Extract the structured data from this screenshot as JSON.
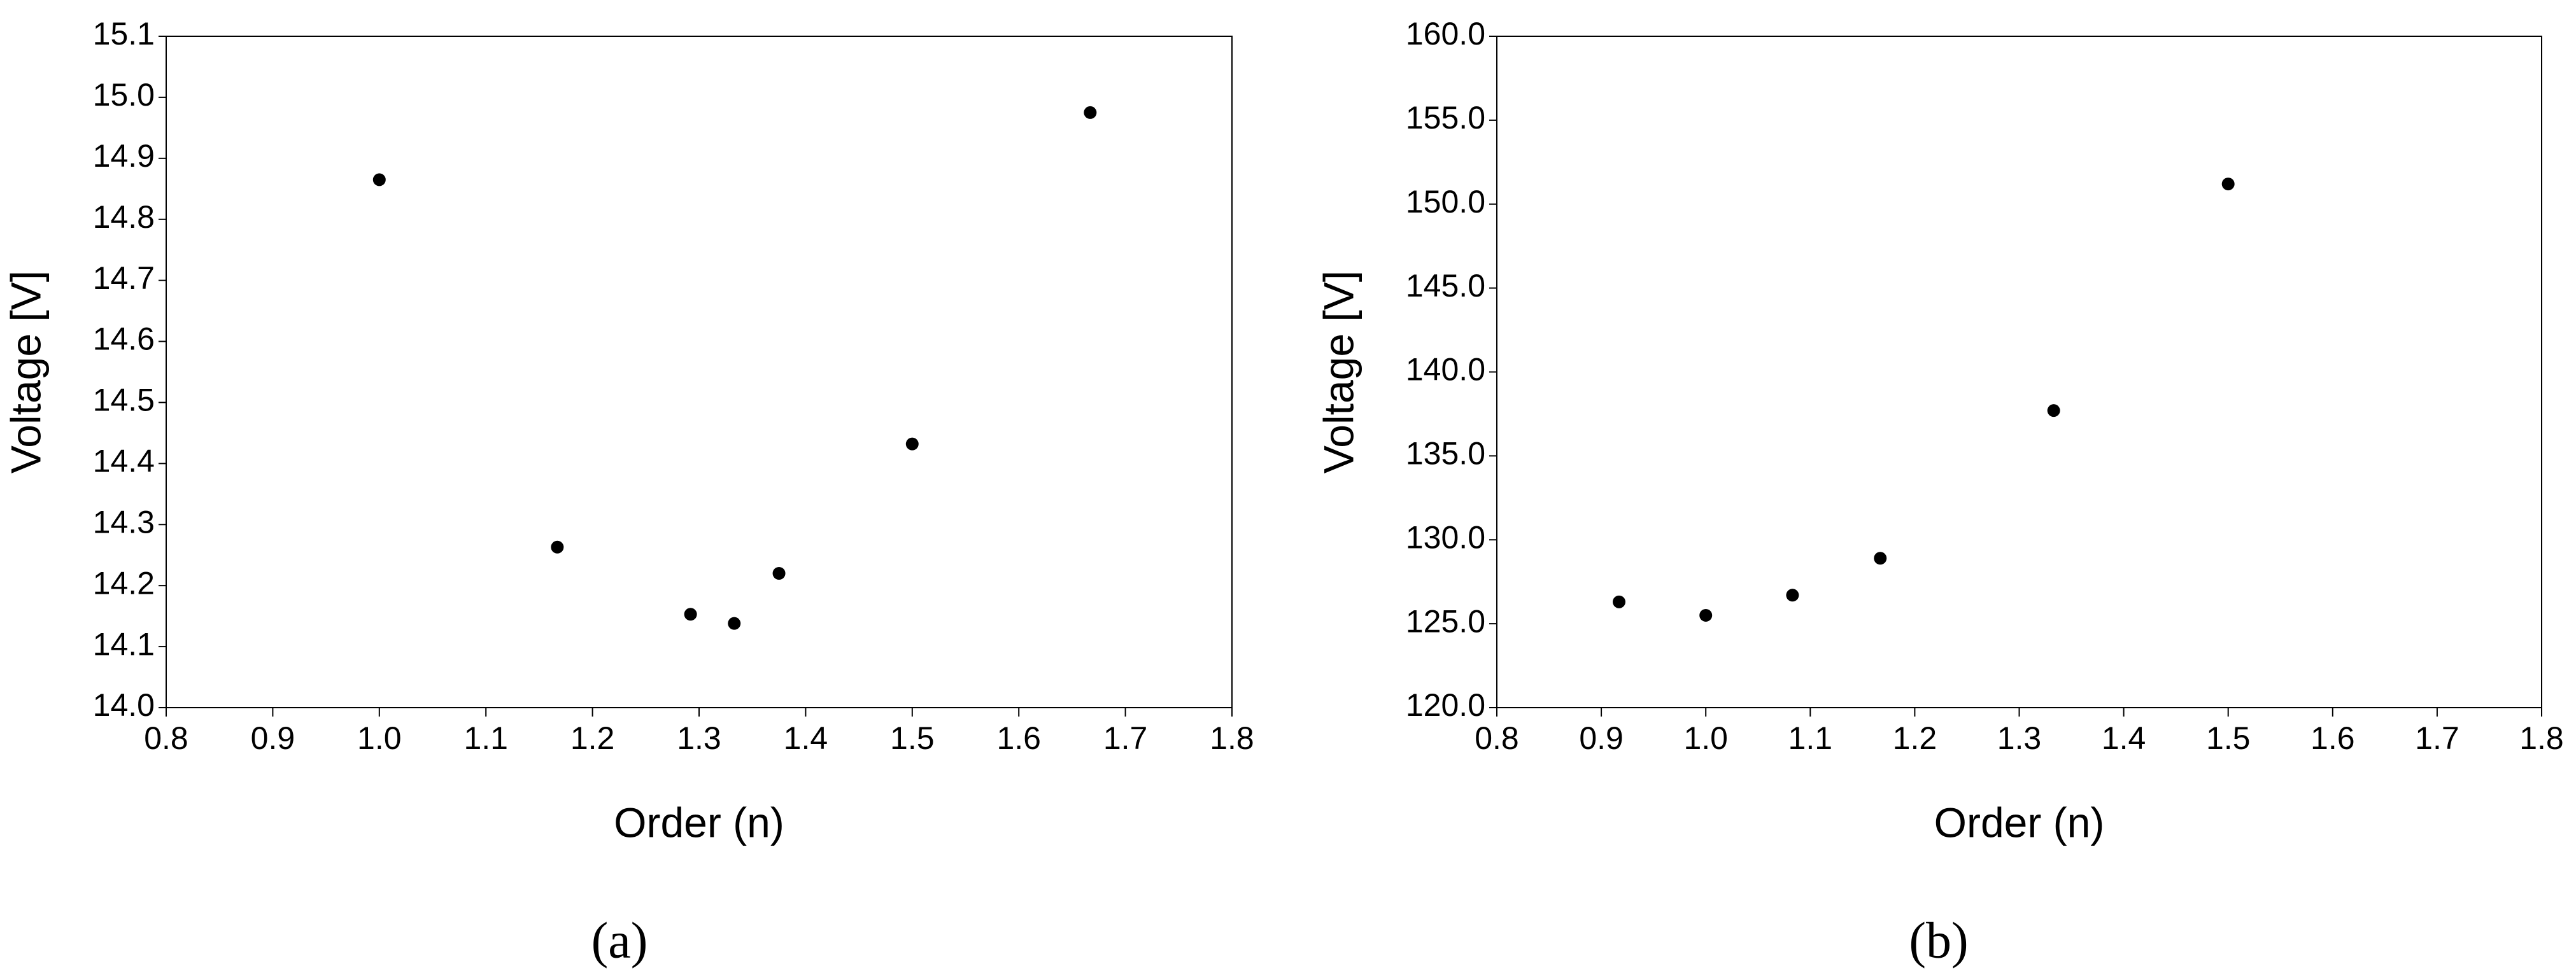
{
  "chart_data": [
    {
      "type": "scatter",
      "caption": "(a)",
      "xlabel": "Order (n)",
      "ylabel": "Voltage [V]",
      "color": "#000000",
      "x": [
        1.0,
        1.167,
        1.292,
        1.333,
        1.375,
        1.5,
        1.667
      ],
      "values": [
        14.865,
        14.263,
        14.153,
        14.138,
        14.22,
        14.432,
        14.975
      ],
      "xlim": [
        0.8,
        1.8
      ],
      "xticks": [
        0.8,
        0.9,
        {
          "value": 1,
          "label": "1.0"
        },
        1.1,
        1.2,
        1.3,
        1.4,
        1.5,
        1.6,
        1.7,
        1.8
      ],
      "ylim": [
        14,
        15.1
      ],
      "yticks": [
        {
          "value": 14,
          "label": "14.0"
        },
        14.1,
        14.2,
        14.3,
        14.4,
        14.5,
        14.6,
        14.7,
        14.8,
        14.9,
        {
          "value": 15,
          "label": "15.0"
        },
        15.1
      ]
    },
    {
      "type": "scatter",
      "caption": "(b)",
      "xlabel": "Order (n)",
      "ylabel": "Voltage [V]",
      "color": "#000000",
      "x": [
        0.917,
        1.0,
        1.083,
        1.167,
        1.333,
        1.5
      ],
      "values": [
        126.3,
        125.5,
        126.7,
        128.9,
        137.7,
        151.2
      ],
      "xlim": [
        0.8,
        1.8
      ],
      "xticks": [
        0.8,
        0.9,
        {
          "value": 1,
          "label": "1.0"
        },
        1.1,
        1.2,
        1.3,
        1.4,
        1.5,
        1.6,
        1.7,
        1.8
      ],
      "ylim": [
        120,
        160
      ],
      "yticks": [
        {
          "value": 120,
          "label": "120.0"
        },
        {
          "value": 125,
          "label": "125.0"
        },
        {
          "value": 130,
          "label": "130.0"
        },
        {
          "value": 135,
          "label": "135.0"
        },
        {
          "value": 140,
          "label": "140.0"
        },
        {
          "value": 145,
          "label": "145.0"
        },
        {
          "value": 150,
          "label": "150.0"
        },
        {
          "value": 155,
          "label": "155.0"
        },
        {
          "value": 160,
          "label": "160.0"
        }
      ]
    }
  ]
}
